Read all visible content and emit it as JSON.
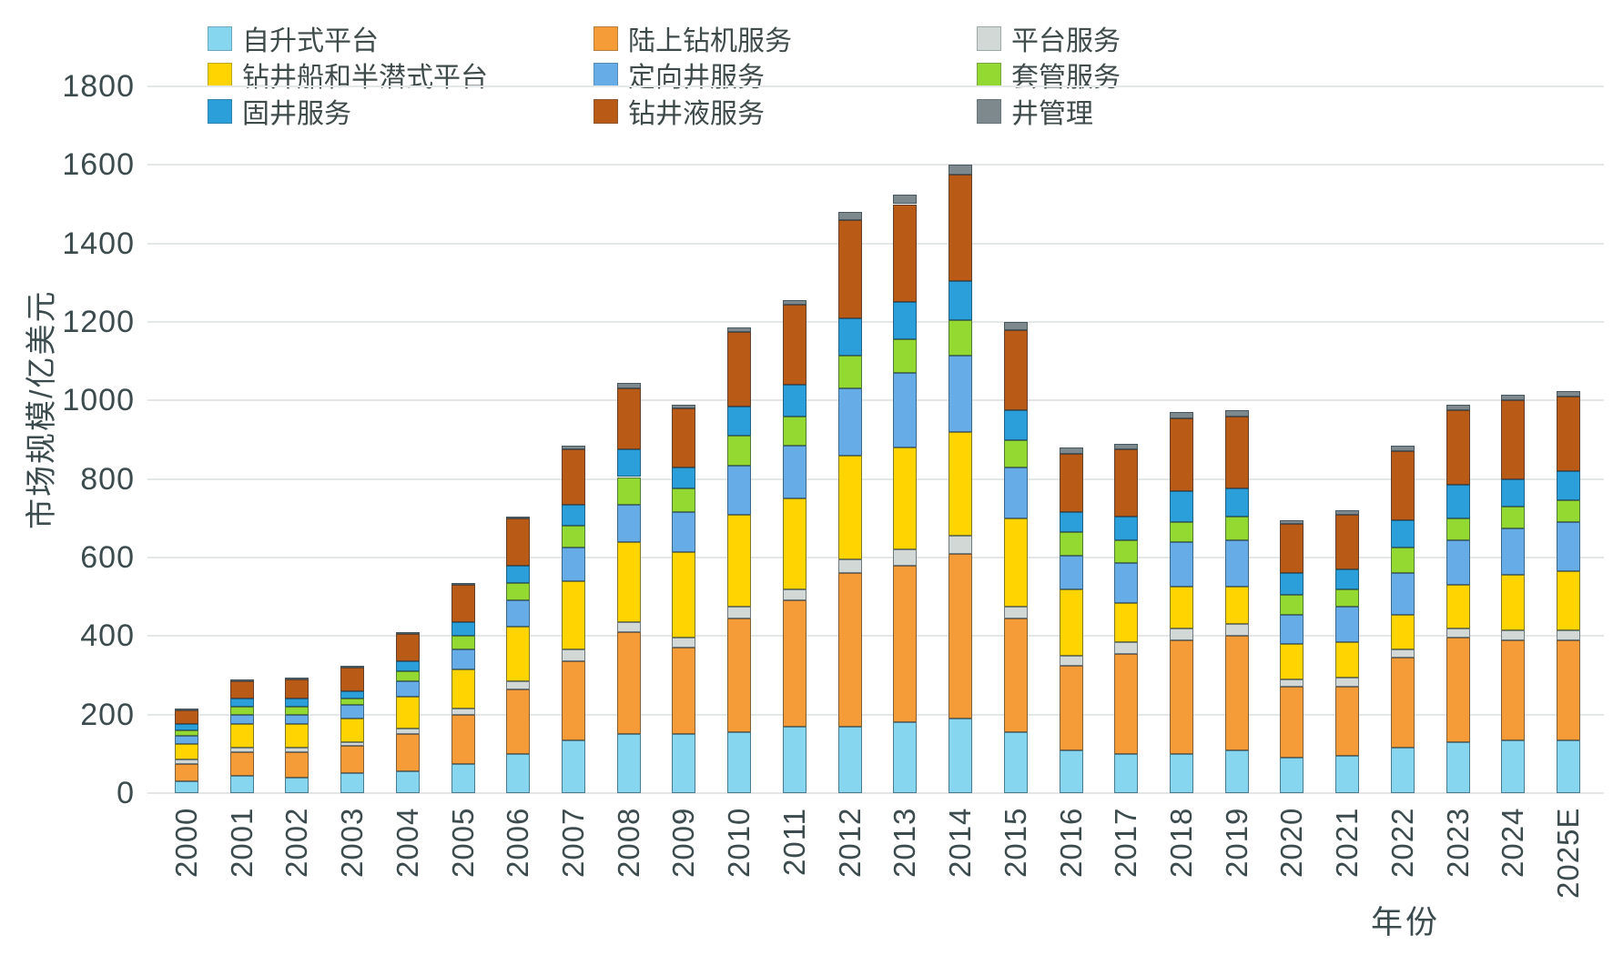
{
  "axes": {
    "y_title": "市场规模/亿美元",
    "x_title": "年份"
  },
  "chart_data": {
    "type": "bar",
    "stacked": true,
    "title": "",
    "xlabel": "年份",
    "ylabel": "市场规模/亿美元",
    "ylim": [
      0,
      1800
    ],
    "ytick_step": 200,
    "grid": true,
    "legend_position": "top",
    "legend_columns": 3,
    "categories": [
      "2000",
      "2001",
      "2002",
      "2003",
      "2004",
      "2005",
      "2006",
      "2007",
      "2008",
      "2009",
      "2010",
      "2011",
      "2012",
      "2013",
      "2014",
      "2015",
      "2016",
      "2017",
      "2018",
      "2019",
      "2020",
      "2021",
      "2022",
      "2023",
      "2024",
      "2025E"
    ],
    "series": [
      {
        "name": "自升式平台",
        "color": "#87D6EF",
        "values": [
          30,
          45,
          40,
          50,
          55,
          75,
          100,
          135,
          150,
          150,
          155,
          170,
          170,
          180,
          190,
          155,
          110,
          100,
          100,
          110,
          90,
          95,
          115,
          130,
          135,
          135
        ]
      },
      {
        "name": "陆上钻机服务",
        "color": "#F59C38",
        "values": [
          45,
          60,
          65,
          70,
          95,
          125,
          165,
          200,
          260,
          220,
          290,
          320,
          390,
          400,
          420,
          290,
          215,
          255,
          290,
          290,
          180,
          175,
          230,
          265,
          255,
          255
        ]
      },
      {
        "name": "平台服务",
        "color": "#D2D8D5",
        "values": [
          10,
          10,
          10,
          10,
          15,
          15,
          20,
          30,
          25,
          25,
          30,
          30,
          35,
          40,
          45,
          30,
          25,
          30,
          30,
          30,
          20,
          25,
          20,
          25,
          25,
          25
        ]
      },
      {
        "name": "钻井船和半潜式平台",
        "color": "#FFD400",
        "values": [
          40,
          60,
          60,
          60,
          80,
          100,
          140,
          175,
          205,
          220,
          235,
          230,
          265,
          260,
          265,
          225,
          170,
          100,
          105,
          95,
          90,
          90,
          90,
          110,
          140,
          150
        ]
      },
      {
        "name": "定向井服务",
        "color": "#66ADE8",
        "values": [
          20,
          25,
          25,
          35,
          40,
          50,
          65,
          85,
          95,
          100,
          125,
          135,
          170,
          190,
          195,
          130,
          85,
          100,
          115,
          120,
          75,
          90,
          105,
          115,
          120,
          125
        ]
      },
      {
        "name": "套管服务",
        "color": "#94D832",
        "values": [
          15,
          20,
          20,
          15,
          25,
          35,
          45,
          55,
          70,
          60,
          75,
          75,
          85,
          85,
          90,
          70,
          60,
          60,
          50,
          60,
          50,
          45,
          65,
          55,
          55,
          55
        ]
      },
      {
        "name": "固井服务",
        "color": "#2B9FD9",
        "values": [
          15,
          20,
          20,
          20,
          25,
          35,
          45,
          55,
          70,
          55,
          75,
          80,
          95,
          95,
          100,
          75,
          50,
          60,
          80,
          70,
          55,
          50,
          70,
          85,
          70,
          75
        ]
      },
      {
        "name": "钻井液服务",
        "color": "#BA5A17",
        "values": [
          35,
          45,
          50,
          60,
          70,
          95,
          120,
          140,
          155,
          150,
          190,
          205,
          250,
          250,
          270,
          205,
          150,
          170,
          185,
          185,
          125,
          140,
          175,
          190,
          200,
          190
        ]
      },
      {
        "name": "井管理",
        "color": "#7D898C",
        "values": [
          5,
          5,
          5,
          5,
          5,
          5,
          5,
          10,
          15,
          10,
          10,
          10,
          20,
          25,
          25,
          20,
          15,
          15,
          15,
          15,
          10,
          10,
          15,
          15,
          15,
          15
        ]
      }
    ]
  }
}
